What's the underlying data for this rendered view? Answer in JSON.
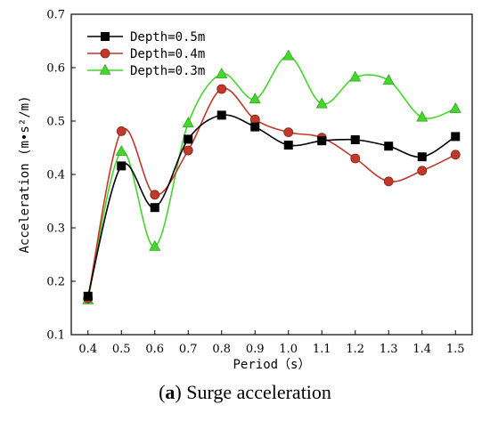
{
  "chart_data": {
    "type": "line",
    "title": "",
    "xlabel": "Period（s）",
    "ylabel": "Acceleration (m•s²/m)",
    "x": [
      0.4,
      0.5,
      0.6,
      0.7,
      0.8,
      0.9,
      1.0,
      1.1,
      1.2,
      1.3,
      1.4,
      1.5
    ],
    "x_tick_labels": [
      "0.4",
      "0.5",
      "0.6",
      "0.7",
      "0.8",
      "0.9",
      "1.0",
      "1.1",
      "1.2",
      "1.3",
      "1.4",
      "1.5"
    ],
    "xlim": [
      0.35,
      1.55
    ],
    "ylim": [
      0.1,
      0.7
    ],
    "y_ticks": [
      0.1,
      0.2,
      0.3,
      0.4,
      0.5,
      0.6,
      0.7
    ],
    "grid": false,
    "legend_position": "top-left",
    "series": [
      {
        "name": "Depth=0.5m",
        "marker": "square",
        "color": "#000000",
        "values": [
          0.172,
          0.416,
          0.338,
          0.466,
          0.511,
          0.489,
          0.455,
          0.463,
          0.465,
          0.453,
          0.433,
          0.471
        ]
      },
      {
        "name": "Depth=0.4m",
        "marker": "circle",
        "color": "#c0392b",
        "values": [
          0.168,
          0.481,
          0.362,
          0.445,
          0.56,
          0.503,
          0.479,
          0.469,
          0.43,
          0.387,
          0.407,
          0.437
        ]
      },
      {
        "name": "Depth=0.3m",
        "marker": "triangle",
        "color": "#44d62c",
        "values": [
          0.165,
          0.443,
          0.265,
          0.496,
          0.588,
          0.541,
          0.622,
          0.532,
          0.582,
          0.576,
          0.507,
          0.523
        ]
      }
    ]
  },
  "caption": {
    "label": "(a)",
    "label_letter": "a",
    "text": "Surge acceleration"
  }
}
